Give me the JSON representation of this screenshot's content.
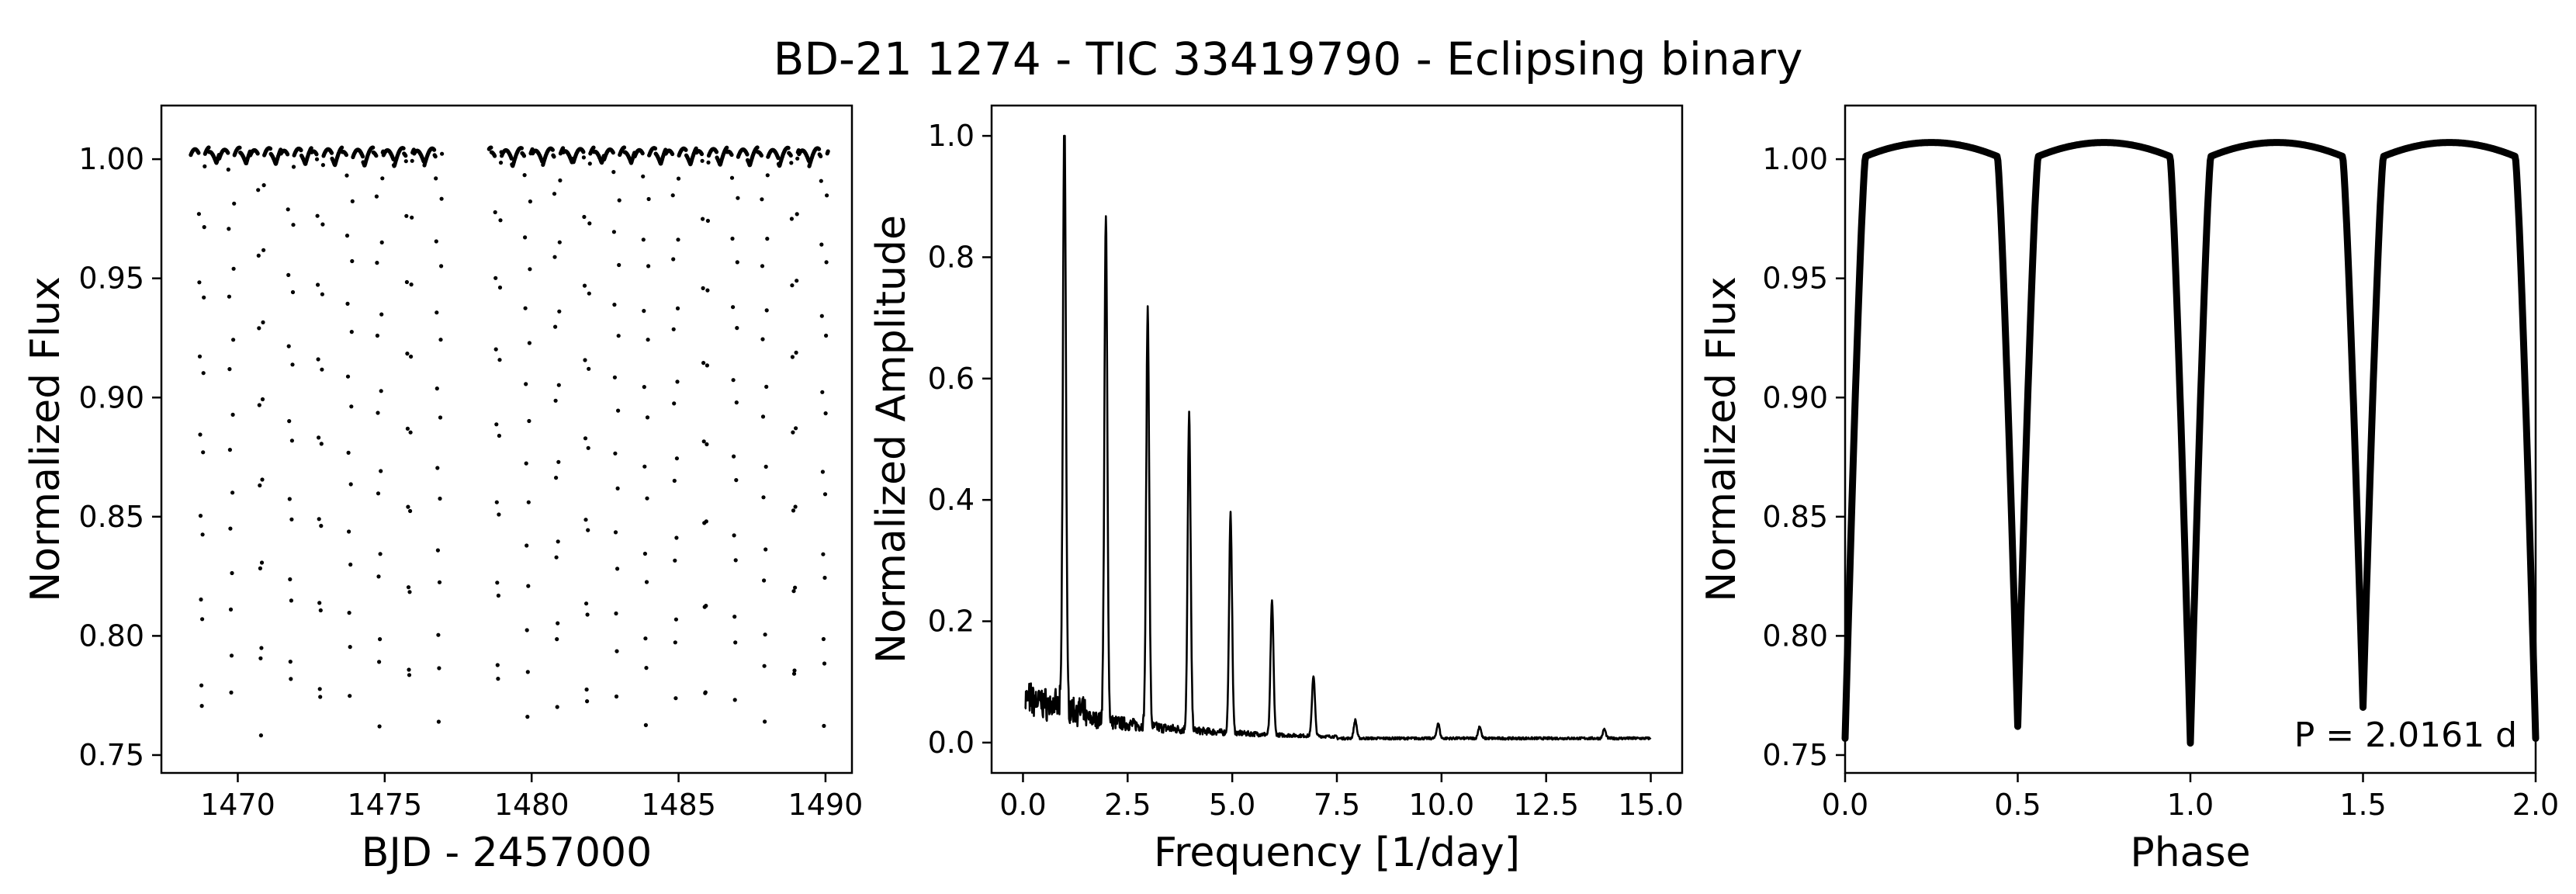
{
  "title": "BD-21 1274 - TIC 33419790 - Eclipsing binary",
  "colors": {
    "ink": "#000000",
    "background": "#ffffff"
  },
  "chart_data": [
    {
      "type": "scatter",
      "panel": "light-curve",
      "xlabel": "BJD - 2457000",
      "ylabel": "Normalized Flux",
      "xlim": [
        1467.4,
        1490.9
      ],
      "ylim": [
        0.7425,
        1.0225
      ],
      "xticks": [
        1470,
        1475,
        1480,
        1485,
        1490
      ],
      "yticks": [
        0.75,
        0.8,
        0.85,
        0.9,
        0.95,
        1.0
      ],
      "xtick_labels": [
        "1470",
        "1475",
        "1480",
        "1485",
        "1490"
      ],
      "ytick_labels": [
        "0.75",
        "0.80",
        "0.85",
        "0.90",
        "0.95",
        "1.00"
      ],
      "segments": [
        [
          1468.4,
          1476.95
        ],
        [
          1478.55,
          1490.1
        ]
      ],
      "eclipse_times": [
        1468.77,
        1469.78,
        1470.79,
        1471.8,
        1472.8,
        1473.81,
        1474.82,
        1475.83,
        1476.84,
        1478.85,
        1479.86,
        1480.87,
        1481.88,
        1482.89,
        1483.89,
        1484.9,
        1485.91,
        1486.92,
        1487.93,
        1488.94,
        1489.95
      ],
      "eclipse_min_flux": 0.757,
      "baseline_flux": 1.0,
      "cadence_days": 0.0139
    },
    {
      "type": "line",
      "panel": "periodogram",
      "xlabel": "Frequency [1/day]",
      "ylabel": "Normalized Amplitude",
      "xlim": [
        -0.75,
        15.75
      ],
      "ylim": [
        -0.05,
        1.05
      ],
      "xticks": [
        0,
        2.5,
        5,
        7.5,
        10,
        12.5,
        15
      ],
      "yticks": [
        0,
        0.2,
        0.4,
        0.6,
        0.8,
        1.0
      ],
      "xtick_labels": [
        "0.0",
        "2.5",
        "5.0",
        "7.5",
        "10.0",
        "12.5",
        "15.0"
      ],
      "ytick_labels": [
        "0.0",
        "0.2",
        "0.4",
        "0.6",
        "0.8",
        "1.0"
      ],
      "peaks": [
        {
          "frequency": 0.99,
          "amplitude": 1.0
        },
        {
          "frequency": 1.98,
          "amplitude": 0.83
        },
        {
          "frequency": 2.98,
          "amplitude": 0.69
        },
        {
          "frequency": 3.97,
          "amplitude": 0.52
        },
        {
          "frequency": 4.96,
          "amplitude": 0.36
        },
        {
          "frequency": 5.95,
          "amplitude": 0.22
        },
        {
          "frequency": 6.94,
          "amplitude": 0.1
        },
        {
          "frequency": 7.94,
          "amplitude": 0.03
        },
        {
          "frequency": 9.92,
          "amplitude": 0.025
        },
        {
          "frequency": 10.91,
          "amplitude": 0.02
        },
        {
          "frequency": 13.89,
          "amplitude": 0.015
        }
      ],
      "noise_floor": 0.005
    },
    {
      "type": "scatter",
      "panel": "phase-folded",
      "xlabel": "Phase",
      "ylabel": "Normalized Flux",
      "xlim": [
        0.0,
        2.0
      ],
      "ylim": [
        0.7425,
        1.0225
      ],
      "xticks": [
        0.0,
        0.5,
        1.0,
        1.5,
        2.0
      ],
      "yticks": [
        0.75,
        0.8,
        0.85,
        0.9,
        0.95,
        1.0
      ],
      "xtick_labels": [
        "0.0",
        "0.5",
        "1.0",
        "1.5",
        "2.0"
      ],
      "ytick_labels": [
        "0.75",
        "0.80",
        "0.85",
        "0.90",
        "0.95",
        "1.00"
      ],
      "eclipses": [
        {
          "phase": 0.0,
          "depth_flux": 0.757
        },
        {
          "phase": 0.5,
          "depth_flux": 0.762
        },
        {
          "phase": 1.0,
          "depth_flux": 0.755
        },
        {
          "phase": 1.5,
          "depth_flux": 0.77
        },
        {
          "phase": 2.0,
          "depth_flux": 0.757
        }
      ],
      "max_flux": 1.007,
      "annotation": "P = 2.0161 d"
    }
  ]
}
